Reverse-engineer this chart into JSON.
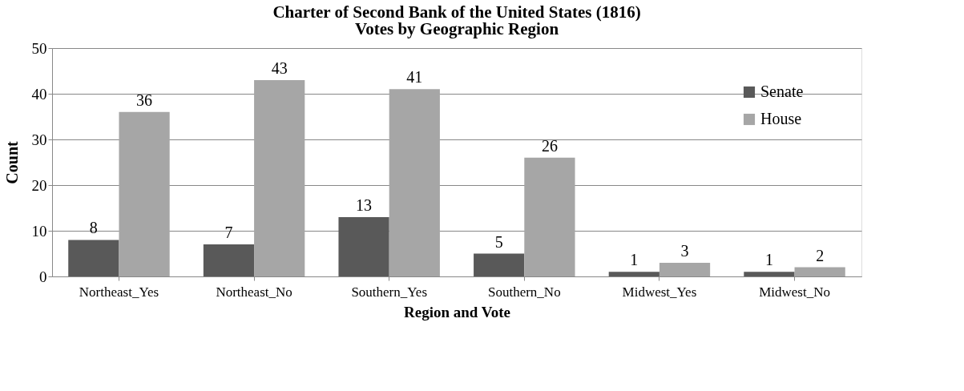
{
  "chart_data": {
    "type": "bar",
    "title": "Charter of Second Bank of the United States (1816)",
    "subtitle": "Votes by Geographic Region",
    "xlabel": "Region and Vote",
    "ylabel": "Count",
    "categories": [
      "Northeast_Yes",
      "Northeast_No",
      "Southern_Yes",
      "Southern_No",
      "Midwest_Yes",
      "Midwest_No"
    ],
    "series": [
      {
        "name": "Senate",
        "color": "#595959",
        "values": [
          8,
          7,
          13,
          5,
          1,
          1
        ]
      },
      {
        "name": "House",
        "color": "#a6a6a6",
        "values": [
          36,
          43,
          41,
          26,
          3,
          2
        ]
      }
    ],
    "ylim": [
      0,
      50
    ],
    "yticks": [
      0,
      10,
      20,
      30,
      40,
      50
    ],
    "grid": "y",
    "legend": "right",
    "data_labels": true
  }
}
